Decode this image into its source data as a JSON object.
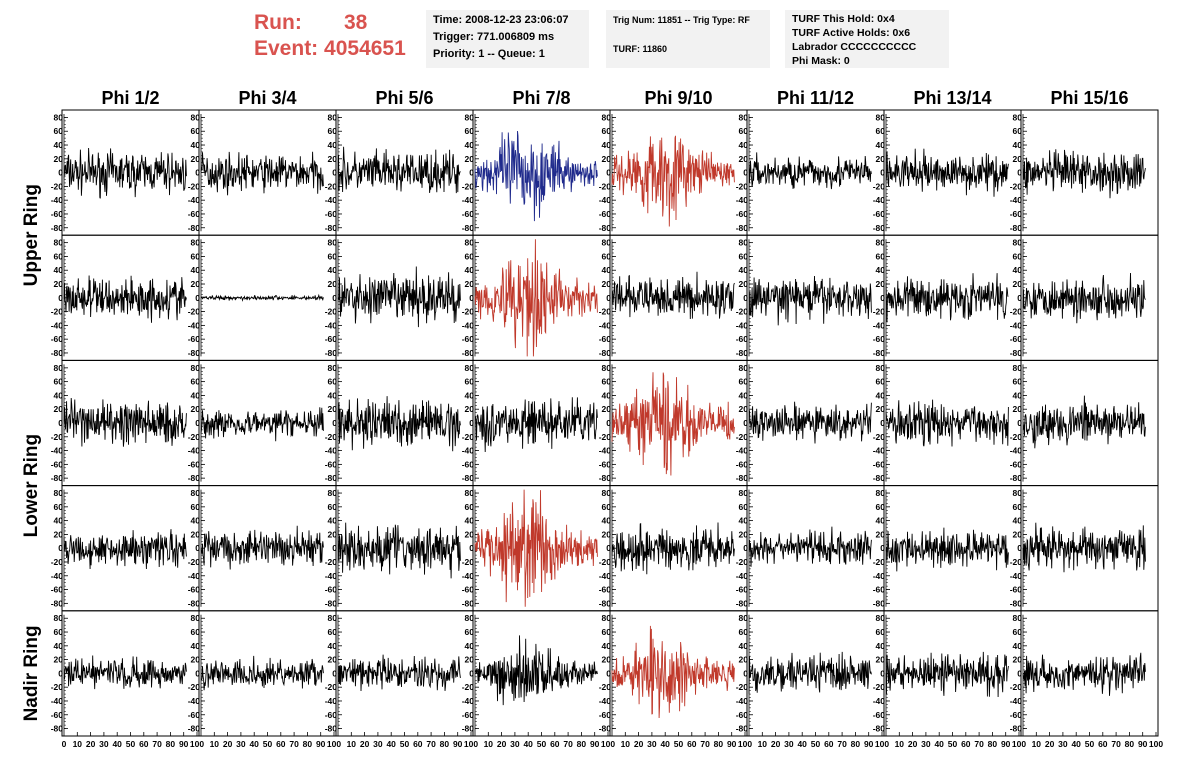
{
  "header": {
    "run_label": "Run:",
    "run_value": "38",
    "event_label": "Event:",
    "event_value": "4054651",
    "time": "Time: 2008-12-23 23:06:07",
    "trigger": "Trigger: 771.006809 ms",
    "priority": "Priority: 1 -- Queue: 1",
    "trig_num": "Trig Num: 11851 -- Trig Type: RF",
    "turf": "TURF: 11860",
    "turf_this_hold": "TURF This Hold: 0x4",
    "turf_active_holds": "TURF Active Holds: 0x6",
    "labrador": "Labrador CCCCCCCCCC",
    "phi_mask": "Phi Mask: 0"
  },
  "colors": {
    "header_red": "#d9534f",
    "trace_black": "#000000",
    "trace_red": "#c0392b",
    "trace_blue": "#1f2a8c",
    "info_bg": "#f2f2f2"
  },
  "chart_data": {
    "type": "line",
    "columns": [
      "Phi 1/2",
      "Phi 3/4",
      "Phi 5/6",
      "Phi 7/8",
      "Phi 9/10",
      "Phi 11/12",
      "Phi 13/14",
      "Phi 15/16"
    ],
    "ring_labels": [
      "Upper Ring",
      "Lower Ring",
      "Nadir Ring"
    ],
    "rows": 5,
    "ylim": [
      -85,
      85
    ],
    "yticks": [
      -80,
      -60,
      -40,
      -20,
      0,
      20,
      40,
      60,
      80
    ],
    "xlim": [
      0,
      100
    ],
    "xticks": [
      0,
      10,
      20,
      30,
      40,
      50,
      60,
      70,
      80,
      90,
      100
    ],
    "samples_x_max": 92,
    "panels": [
      [
        {
          "c": "black",
          "a": 18,
          "e": "none"
        },
        {
          "c": "black",
          "a": 16,
          "e": "none"
        },
        {
          "c": "black",
          "a": 18,
          "e": "none"
        },
        {
          "c": "blue",
          "a": 28,
          "e": "center"
        },
        {
          "c": "red",
          "a": 28,
          "e": "center"
        },
        {
          "c": "black",
          "a": 14,
          "e": "none"
        },
        {
          "c": "black",
          "a": 16,
          "e": "none"
        },
        {
          "c": "black",
          "a": 18,
          "e": "none"
        }
      ],
      [
        {
          "c": "black",
          "a": 18,
          "e": "none"
        },
        {
          "c": "black",
          "a": 2,
          "e": "none"
        },
        {
          "c": "black",
          "a": 22,
          "e": "none"
        },
        {
          "c": "red",
          "a": 32,
          "e": "center"
        },
        {
          "c": "black",
          "a": 18,
          "e": "none"
        },
        {
          "c": "black",
          "a": 18,
          "e": "none"
        },
        {
          "c": "black",
          "a": 18,
          "e": "none"
        },
        {
          "c": "black",
          "a": 18,
          "e": "none"
        }
      ],
      [
        {
          "c": "black",
          "a": 20,
          "e": "none"
        },
        {
          "c": "black",
          "a": 12,
          "e": "none"
        },
        {
          "c": "black",
          "a": 20,
          "e": "none"
        },
        {
          "c": "black",
          "a": 20,
          "e": "none"
        },
        {
          "c": "red",
          "a": 30,
          "e": "center"
        },
        {
          "c": "black",
          "a": 15,
          "e": "none"
        },
        {
          "c": "black",
          "a": 18,
          "e": "none"
        },
        {
          "c": "black",
          "a": 18,
          "e": "none"
        }
      ],
      [
        {
          "c": "black",
          "a": 16,
          "e": "none"
        },
        {
          "c": "black",
          "a": 16,
          "e": "none"
        },
        {
          "c": "black",
          "a": 20,
          "e": "none"
        },
        {
          "c": "red",
          "a": 32,
          "e": "center"
        },
        {
          "c": "black",
          "a": 18,
          "e": "none"
        },
        {
          "c": "black",
          "a": 14,
          "e": "none"
        },
        {
          "c": "black",
          "a": 16,
          "e": "none"
        },
        {
          "c": "black",
          "a": 18,
          "e": "none"
        }
      ],
      [
        {
          "c": "black",
          "a": 14,
          "e": "none"
        },
        {
          "c": "black",
          "a": 12,
          "e": "none"
        },
        {
          "c": "black",
          "a": 14,
          "e": "none"
        },
        {
          "c": "black",
          "a": 20,
          "e": "center"
        },
        {
          "c": "red",
          "a": 26,
          "e": "center"
        },
        {
          "c": "black",
          "a": 16,
          "e": "none"
        },
        {
          "c": "black",
          "a": 16,
          "e": "none"
        },
        {
          "c": "black",
          "a": 16,
          "e": "none"
        }
      ]
    ]
  }
}
